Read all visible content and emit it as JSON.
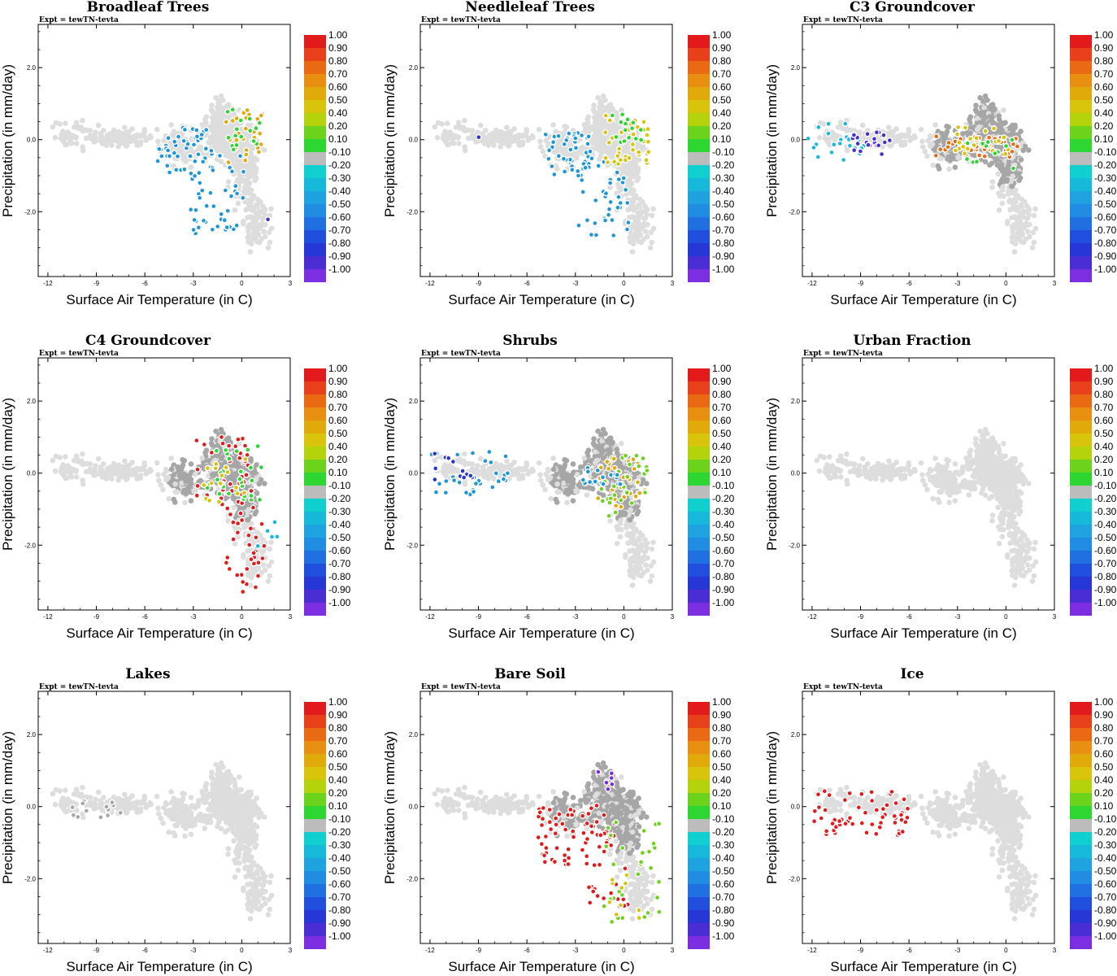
{
  "figure": {
    "expt_label": "Expt = tewTN-tevta",
    "xlabel": "Surface Air Temperature (in C)",
    "ylabel": "Precipitation (in mm/day)",
    "xlim": [
      -12.6,
      3.0
    ],
    "ylim": [
      -3.8,
      3.2
    ],
    "x_ticks": [
      "-12",
      "-9",
      "-6",
      "-3",
      "0",
      "3"
    ],
    "x_tick_values": [
      -12,
      -9,
      -6,
      -3,
      0,
      3
    ],
    "y_ticks": [
      "2.0",
      "0.0",
      "-2.0"
    ],
    "y_tick_values": [
      2,
      0,
      -2
    ],
    "colorbar_labels": [
      "1.00",
      "0.90",
      "0.80",
      "0.70",
      "0.60",
      "0.50",
      "0.40",
      "0.20",
      "0.10",
      "-0.10",
      "-0.20",
      "-0.30",
      "-0.40",
      "-0.50",
      "-0.60",
      "-0.70",
      "-0.80",
      "-0.90",
      "-1.00"
    ],
    "colorbar_colors": [
      "#e31a1c",
      "#e8401a",
      "#ea6a14",
      "#e88e10",
      "#dfaa0a",
      "#d8c40a",
      "#b5d30d",
      "#6cd31d",
      "#2ed631",
      "#bcbcbc",
      "#10cfcf",
      "#17b9da",
      "#1ea3e0",
      "#218de2",
      "#2170e2",
      "#1f4fdc",
      "#2637d6",
      "#4a2ed4",
      "#7b2fe0"
    ],
    "background_color": "#dddddd",
    "grey_color": "#a6a6a6"
  },
  "chart_data": [
    {
      "type": "scatter",
      "title": "Broadleaf Trees",
      "xlabel": "Surface Air Temperature (in C)",
      "ylabel": "Precipitation (in mm/day)",
      "highlight": [
        {
          "x": -3.5,
          "y": -0.3,
          "w": 3.5,
          "h": 1.3,
          "n": 50,
          "c": "#1e96dc"
        },
        {
          "x": -1.5,
          "y": -1.5,
          "w": 3.5,
          "h": 2.3,
          "n": 45,
          "c": "#1e96dc"
        },
        {
          "x": 0.2,
          "y": 0.1,
          "w": 2.4,
          "h": 1.5,
          "n": 30,
          "c": "#dfaa0a"
        },
        {
          "x": 0.0,
          "y": 0.2,
          "w": 2.4,
          "h": 1.3,
          "n": 18,
          "c": "#2ed631"
        },
        {
          "x": 1.8,
          "y": -2.1,
          "w": 0.5,
          "h": 0.4,
          "n": 1,
          "c": "#4a2ed4"
        }
      ]
    },
    {
      "type": "scatter",
      "title": "Needleleaf Trees",
      "xlabel": "Surface Air Temperature (in C)",
      "ylabel": "Precipitation (in mm/day)",
      "highlight": [
        {
          "x": -3.5,
          "y": -0.4,
          "w": 3.0,
          "h": 1.2,
          "n": 45,
          "c": "#1e96dc"
        },
        {
          "x": -1.2,
          "y": -1.5,
          "w": 3.2,
          "h": 2.4,
          "n": 40,
          "c": "#1e96dc"
        },
        {
          "x": 0.2,
          "y": 0.0,
          "w": 2.8,
          "h": 1.4,
          "n": 40,
          "c": "#d8c40a"
        },
        {
          "x": 0.2,
          "y": 0.3,
          "w": 2.0,
          "h": 0.8,
          "n": 15,
          "c": "#2ed631"
        },
        {
          "x": -9.0,
          "y": 0.1,
          "w": 0.5,
          "h": 0.2,
          "n": 1,
          "c": "#2637d6"
        }
      ]
    },
    {
      "type": "scatter",
      "title": "C3 Groundcover",
      "xlabel": "Surface Air Temperature (in C)",
      "ylabel": "Precipitation (in mm/day)",
      "highlight": [
        {
          "x": -10.5,
          "y": 0.0,
          "w": 3.5,
          "h": 1.2,
          "n": 25,
          "c": "#17b9da"
        },
        {
          "x": -8.3,
          "y": -0.1,
          "w": 2.4,
          "h": 0.7,
          "n": 22,
          "c": "#4a2ed4"
        },
        {
          "x": -2.0,
          "y": -0.2,
          "w": 5.5,
          "h": 0.6,
          "n": 50,
          "c": "#ea6a14"
        },
        {
          "x": -1.5,
          "y": 0.0,
          "w": 3.5,
          "h": 0.9,
          "n": 25,
          "c": "#d8c40a"
        },
        {
          "x": -1.0,
          "y": -0.4,
          "w": 3.0,
          "h": 0.8,
          "n": 12,
          "c": "#2ed631"
        }
      ]
    },
    {
      "type": "scatter",
      "title": "C4 Groundcover",
      "xlabel": "Surface Air Temperature (in C)",
      "ylabel": "Precipitation (in mm/day)",
      "highlight": [
        {
          "x": -1.0,
          "y": 0.0,
          "w": 3.6,
          "h": 2.3,
          "n": 40,
          "c": "#e31a1c"
        },
        {
          "x": 0.2,
          "y": -2.3,
          "w": 2.5,
          "h": 2.0,
          "n": 30,
          "c": "#e31a1c"
        },
        {
          "x": -0.5,
          "y": 0.0,
          "w": 3.5,
          "h": 1.6,
          "n": 30,
          "c": "#2ed631"
        },
        {
          "x": -1.0,
          "y": -0.2,
          "w": 3.0,
          "h": 1.2,
          "n": 20,
          "c": "#d8c40a"
        },
        {
          "x": 1.5,
          "y": -1.6,
          "w": 1.5,
          "h": 1.0,
          "n": 6,
          "c": "#17b9da"
        }
      ]
    },
    {
      "type": "scatter",
      "title": "Shrubs",
      "xlabel": "Surface Air Temperature (in C)",
      "ylabel": "Precipitation (in mm/day)",
      "highlight": [
        {
          "x": -9.5,
          "y": 0.0,
          "w": 5.0,
          "h": 1.2,
          "n": 32,
          "c": "#1e96dc"
        },
        {
          "x": -10.5,
          "y": 0.2,
          "w": 2.5,
          "h": 0.8,
          "n": 12,
          "c": "#2637d6"
        },
        {
          "x": -0.2,
          "y": -0.2,
          "w": 3.0,
          "h": 1.5,
          "n": 35,
          "c": "#dfaa0a"
        },
        {
          "x": 0.0,
          "y": -0.3,
          "w": 3.0,
          "h": 1.8,
          "n": 30,
          "c": "#6cd31d"
        },
        {
          "x": -1.2,
          "y": -0.1,
          "w": 3.0,
          "h": 0.5,
          "n": 18,
          "c": "#1e96dc"
        }
      ]
    },
    {
      "type": "scatter",
      "title": "Urban Fraction",
      "xlabel": "Surface Air Temperature (in C)",
      "ylabel": "Precipitation (in mm/day)",
      "highlight": []
    },
    {
      "type": "scatter",
      "title": "Lakes",
      "xlabel": "Surface Air Temperature (in C)",
      "ylabel": "Precipitation (in mm/day)",
      "highlight": [
        {
          "x": -9.0,
          "y": -0.1,
          "w": 3.0,
          "h": 0.5,
          "n": 14,
          "c": "#a6a6a6"
        }
      ]
    },
    {
      "type": "scatter",
      "title": "Bare Soil",
      "xlabel": "Surface Air Temperature (in C)",
      "ylabel": "Precipitation (in mm/day)",
      "highlight": [
        {
          "x": -3.0,
          "y": -0.8,
          "w": 5.0,
          "h": 1.7,
          "n": 70,
          "c": "#e31a1c"
        },
        {
          "x": -1.0,
          "y": -2.2,
          "w": 2.5,
          "h": 1.2,
          "n": 20,
          "c": "#e31a1c"
        },
        {
          "x": 0.5,
          "y": -1.8,
          "w": 3.5,
          "h": 3.0,
          "n": 30,
          "c": "#6cd31d"
        },
        {
          "x": 0.0,
          "y": -2.5,
          "w": 2.0,
          "h": 1.2,
          "n": 10,
          "c": "#d8c40a"
        },
        {
          "x": -1.2,
          "y": 0.7,
          "w": 1.0,
          "h": 0.6,
          "n": 6,
          "c": "#7b2fe0"
        }
      ]
    },
    {
      "type": "scatter",
      "title": "Ice",
      "xlabel": "Surface Air Temperature (in C)",
      "ylabel": "Precipitation (in mm/day)",
      "highlight": [
        {
          "x": -9.0,
          "y": -0.2,
          "w": 6.0,
          "h": 1.3,
          "n": 60,
          "c": "#e31a1c"
        }
      ]
    }
  ]
}
